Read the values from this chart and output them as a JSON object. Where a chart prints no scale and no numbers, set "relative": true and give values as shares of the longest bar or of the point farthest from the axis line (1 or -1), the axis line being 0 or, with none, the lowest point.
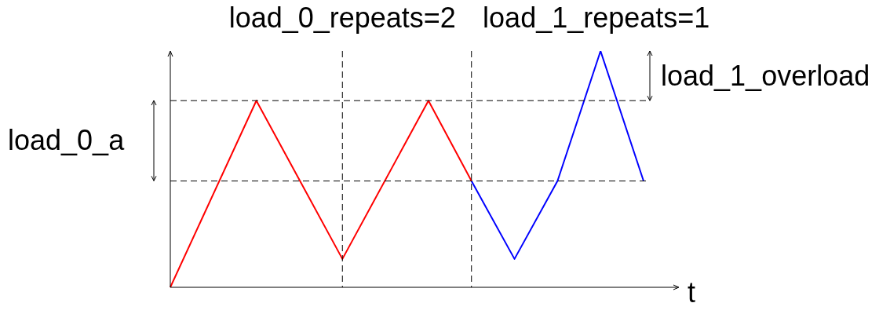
{
  "chart_data": {
    "type": "line",
    "relative": true,
    "xlabel": "t",
    "tick_labels": false,
    "marker": "none",
    "line_style": "solid",
    "categories": [
      null,
      null,
      null,
      null,
      null,
      null,
      null,
      null,
      null,
      null,
      null,
      null
    ],
    "series": [
      {
        "color": "#ff0000",
        "values": [
          0,
          null,
          0.79,
          null,
          0.12,
          null,
          0.79,
          0.45,
          null,
          null,
          null,
          null
        ]
      },
      {
        "color": "#0000ff",
        "values": [
          null,
          null,
          null,
          null,
          null,
          null,
          null,
          0.45,
          0.12,
          0.45,
          1,
          0.45
        ]
      }
    ],
    "ref_lines": [
      {
        "axis": "y",
        "value": 0.79,
        "line_style": "dashed",
        "color": "#000000"
      },
      {
        "axis": "y",
        "value": 0.45,
        "line_style": "dashed",
        "color": "#000000"
      }
    ],
    "annotations": [
      "load_0_repeats=2",
      "load_1_repeats=1",
      "load_0_a",
      "load_1_overload"
    ]
  }
}
